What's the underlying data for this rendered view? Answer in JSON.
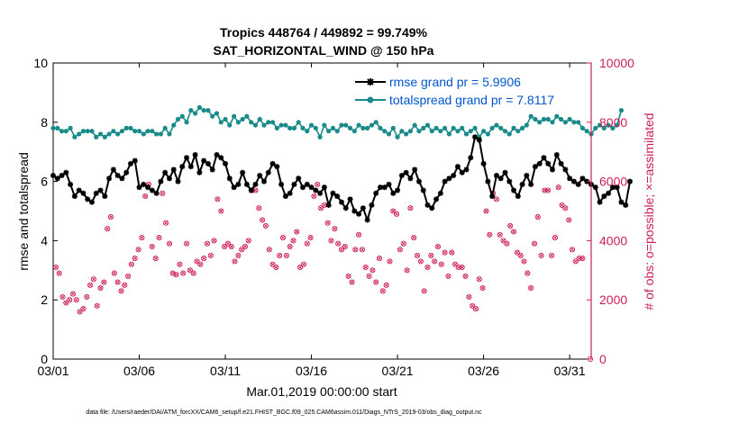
{
  "colors": {
    "rmse": "#000000",
    "spread": "#1a8a8a",
    "obs": "#cc1f5a",
    "legend_text": "#0055cc",
    "axis": "#000000"
  },
  "chart_data": {
    "type": "line",
    "title": "Tropics 448764 / 449892 = 99.749%",
    "subtitle": "SAT_HORIZONTAL_WIND @ 150 hPa",
    "xlabel": "Mar.01,2019 00:00:00 start",
    "ylabel_left": "rmse and totalspread",
    "ylabel_right": "# of obs: o=possible; ×=assimilated",
    "xlim": [
      0,
      31.25
    ],
    "ylim_left": [
      0,
      10
    ],
    "ylim_right": [
      0,
      10000
    ],
    "x_ticks": [
      0,
      5,
      10,
      15,
      20,
      25,
      30
    ],
    "x_tick_labels": [
      "03/01",
      "03/06",
      "03/11",
      "03/16",
      "03/21",
      "03/26",
      "03/31"
    ],
    "y_ticks_left": [
      0,
      2,
      4,
      6,
      8,
      10
    ],
    "y_tick_labels_left": [
      "0",
      "2",
      "4",
      "6",
      "8",
      "10"
    ],
    "y_ticks_right": [
      0,
      2000,
      4000,
      6000,
      8000,
      10000
    ],
    "y_tick_labels_right": [
      "0",
      "2000",
      "4000",
      "6000",
      "8000",
      "10000"
    ],
    "legend": [
      {
        "label": "rmse grand pr = 5.9906",
        "series": "rmse"
      },
      {
        "label": "totalspread grand pr = 7.8117",
        "series": "totalspread"
      }
    ],
    "step_days": 0.25,
    "series": [
      {
        "name": "rmse",
        "axis": "left",
        "values": [
          6.2,
          6.1,
          6.2,
          6.3,
          5.9,
          5.5,
          5.7,
          5.6,
          5.4,
          5.3,
          5.6,
          5.7,
          5.5,
          6.1,
          6.4,
          6.2,
          6.1,
          6.3,
          6.6,
          6.7,
          5.8,
          5.9,
          5.8,
          5.7,
          5.6,
          6.0,
          6.3,
          6.1,
          6.4,
          6.0,
          6.5,
          6.8,
          6.5,
          6.9,
          6.3,
          6.7,
          6.6,
          6.4,
          6.9,
          6.8,
          6.6,
          6.1,
          5.8,
          5.9,
          6.3,
          5.9,
          5.7,
          5.9,
          6.2,
          6.0,
          6.3,
          6.6,
          6.5,
          5.9,
          5.5,
          5.6,
          5.9,
          6.1,
          5.8,
          5.9,
          5.8,
          5.7,
          5.6,
          5.8,
          5.2,
          5.6,
          5.5,
          5.3,
          5.1,
          5.4,
          5.0,
          4.9,
          5.1,
          4.7,
          5.2,
          5.6,
          5.8,
          5.8,
          5.9,
          5.6,
          5.7,
          6.2,
          6.3,
          6.1,
          6.4,
          6.0,
          5.7,
          5.2,
          5.1,
          5.4,
          5.6,
          6.0,
          6.1,
          6.2,
          6.5,
          6.3,
          6.4,
          6.8,
          7.5,
          7.4,
          6.6,
          6.0,
          5.5,
          6.2,
          6.1,
          6.3,
          6.0,
          5.7,
          5.5,
          5.9,
          6.2,
          5.9,
          6.5,
          6.6,
          6.8,
          6.6,
          6.4,
          6.9,
          6.6,
          6.4,
          6.1,
          6.0,
          5.9,
          6.1,
          6.0,
          5.9,
          5.8,
          5.3,
          5.5,
          5.6,
          5.8,
          5.8,
          5.3,
          5.2,
          6.0
        ]
      },
      {
        "name": "totalspread",
        "axis": "left",
        "values": [
          7.8,
          7.8,
          7.7,
          7.7,
          7.8,
          7.5,
          7.6,
          7.7,
          7.7,
          7.7,
          7.5,
          7.6,
          7.5,
          7.6,
          7.7,
          7.6,
          7.7,
          7.8,
          7.8,
          7.7,
          7.7,
          7.6,
          7.7,
          7.7,
          7.6,
          7.6,
          7.8,
          7.6,
          7.9,
          8.1,
          8.2,
          8.0,
          8.4,
          8.3,
          8.5,
          8.4,
          8.4,
          8.2,
          8.3,
          8.0,
          8.1,
          7.9,
          8.2,
          8.0,
          8.1,
          8.2,
          8.0,
          7.9,
          8.1,
          7.9,
          8.0,
          8.0,
          7.8,
          7.9,
          7.9,
          7.8,
          7.8,
          8.0,
          7.8,
          7.7,
          7.9,
          7.8,
          7.5,
          7.9,
          7.7,
          7.8,
          7.7,
          7.9,
          7.9,
          7.8,
          7.7,
          7.9,
          7.8,
          7.8,
          7.9,
          8.0,
          7.8,
          7.7,
          7.6,
          7.8,
          7.5,
          7.7,
          7.6,
          7.7,
          7.9,
          7.7,
          7.8,
          7.9,
          7.7,
          7.8,
          7.7,
          7.8,
          7.6,
          7.8,
          7.7,
          7.8,
          7.6,
          7.7,
          7.8,
          7.5,
          7.7,
          7.6,
          7.8,
          7.9,
          7.8,
          7.7,
          7.6,
          7.8,
          7.7,
          7.8,
          7.9,
          8.2,
          8.1,
          8.0,
          8.1,
          8.1,
          8.0,
          8.2,
          8.1,
          8.0,
          8.1,
          8.0,
          8.0,
          7.8,
          7.7,
          7.6,
          7.8,
          7.9,
          7.8,
          7.9,
          7.8,
          7.9,
          8.4
        ]
      },
      {
        "name": "obs",
        "axis": "right",
        "style": "markers",
        "values": [
          3100,
          2900,
          2100,
          1900,
          2000,
          2200,
          2000,
          1600,
          1700,
          2100,
          2500,
          2700,
          1800,
          2400,
          2600,
          4400,
          4800,
          2900,
          2600,
          2300,
          2500,
          2800,
          3200,
          3400,
          3700,
          4100,
          5500,
          5900,
          3800,
          3400,
          4100,
          5600,
          4600,
          3900,
          2900,
          2850,
          3200,
          2900,
          3900,
          3000,
          2900,
          3300,
          3200,
          3400,
          3900,
          3500,
          4000,
          5400,
          5000,
          3800,
          3900,
          3800,
          3300,
          3500,
          3700,
          3800,
          4000,
          5700,
          5700,
          5100,
          4700,
          4500,
          3700,
          3200,
          3100,
          3500,
          4100,
          3500,
          3800,
          4000,
          4300,
          3100,
          3200,
          3900,
          4100,
          5500,
          5900,
          5100,
          5200,
          4600,
          4000,
          4400,
          3900,
          3700,
          3800,
          2800,
          2600,
          3700,
          4200,
          3700,
          3100,
          2800,
          3000,
          2600,
          3400,
          2300,
          2500,
          3300,
          5000,
          4900,
          3700,
          3900,
          3000,
          5100,
          4100,
          3500,
          3300,
          2300,
          3100,
          3500,
          3300,
          3800,
          3200,
          3600,
          2800,
          3600,
          3200,
          3100,
          3100,
          2800,
          2100,
          1800,
          1700,
          2700,
          2400,
          5000,
          4200,
          5600,
          5400,
          4200,
          4000,
          3900,
          4500,
          4300,
          3600,
          3500,
          3300,
          2900,
          2400,
          3900,
          4800,
          3500,
          5700,
          5700,
          3500,
          4100,
          5800,
          5200,
          5100,
          4700,
          3700,
          3300,
          3400,
          3400
        ]
      }
    ]
  },
  "footer": {
    "data_file": "data file: /Users/raeder/DAI/ATM_forcXX/CAM6_setup/f.e21.FHIST_BGC.f09_025.CAM6assim.011/Diags_NTrS_2019-03/obs_diag_output.nc"
  }
}
